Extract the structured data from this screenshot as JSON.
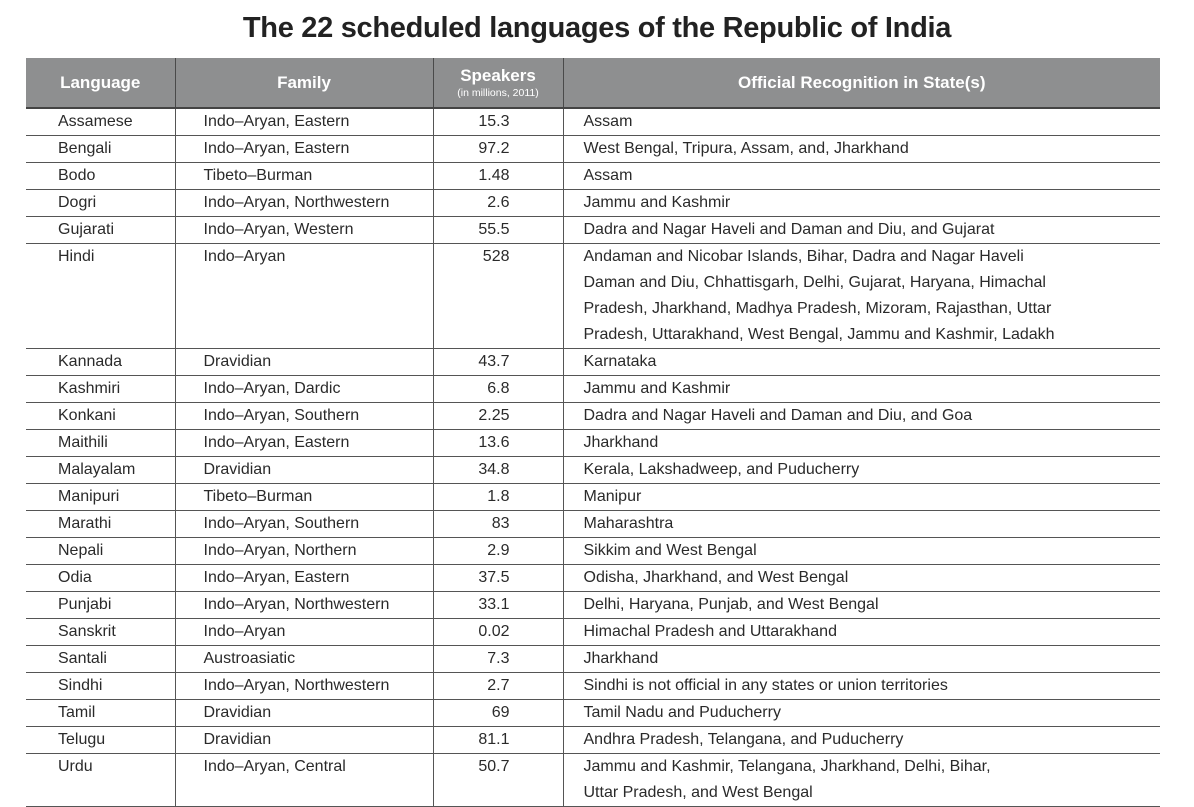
{
  "title": "The 22 scheduled languages of the Republic of India",
  "header": {
    "language": "Language",
    "family": "Family",
    "speakers": "Speakers",
    "speakers_sub": "(in millions, 2011)",
    "recognition": "Official Recognition in State(s)"
  },
  "rows": [
    {
      "language": "Assamese",
      "family": "Indo–Aryan, Eastern",
      "speakers": "15.3",
      "recognition": [
        "Assam"
      ]
    },
    {
      "language": "Bengali",
      "family": "Indo–Aryan, Eastern",
      "speakers": "97.2",
      "recognition": [
        "West Bengal, Tripura, Assam, and, Jharkhand"
      ]
    },
    {
      "language": "Bodo",
      "family": "Tibeto–Burman",
      "speakers": "1.48",
      "recognition": [
        "Assam"
      ]
    },
    {
      "language": "Dogri",
      "family": "Indo–Aryan, Northwestern",
      "speakers": "2.6",
      "recognition": [
        "Jammu and Kashmir"
      ]
    },
    {
      "language": "Gujarati",
      "family": "Indo–Aryan, Western",
      "speakers": "55.5",
      "recognition": [
        "Dadra and Nagar Haveli and Daman and Diu, and Gujarat"
      ]
    },
    {
      "language": "Hindi",
      "family": "Indo–Aryan",
      "speakers": "528",
      "recognition": [
        "Andaman and Nicobar Islands, Bihar, Dadra and Nagar Haveli",
        "Daman and Diu, Chhattisgarh, Delhi, Gujarat, Haryana, Himachal",
        "Pradesh, Jharkhand, Madhya Pradesh, Mizoram, Rajasthan, Uttar",
        "Pradesh, Uttarakhand, West Bengal, Jammu and Kashmir, Ladakh"
      ]
    },
    {
      "language": "Kannada",
      "family": "Dravidian",
      "speakers": "43.7",
      "recognition": [
        "Karnataka"
      ]
    },
    {
      "language": "Kashmiri",
      "family": "Indo–Aryan, Dardic",
      "speakers": "6.8",
      "recognition": [
        "Jammu and Kashmir"
      ]
    },
    {
      "language": "Konkani",
      "family": "Indo–Aryan, Southern",
      "speakers": "2.25",
      "recognition": [
        "Dadra and  Nagar Haveli and Daman and Diu, and Goa"
      ]
    },
    {
      "language": "Maithili",
      "family": "Indo–Aryan, Eastern",
      "speakers": "13.6",
      "recognition": [
        "Jharkhand"
      ]
    },
    {
      "language": "Malayalam",
      "family": "Dravidian",
      "speakers": "34.8",
      "recognition": [
        "Kerala, Lakshadweep, and Puducherry"
      ]
    },
    {
      "language": "Manipuri",
      "family": "Tibeto–Burman",
      "speakers": "1.8",
      "recognition": [
        "Manipur"
      ]
    },
    {
      "language": "Marathi",
      "family": "Indo–Aryan, Southern",
      "speakers": "83",
      "recognition": [
        "Maharashtra"
      ]
    },
    {
      "language": "Nepali",
      "family": "Indo–Aryan, Northern",
      "speakers": "2.9",
      "recognition": [
        "Sikkim and West Bengal"
      ]
    },
    {
      "language": "Odia",
      "family": "Indo–Aryan, Eastern",
      "speakers": "37.5",
      "recognition": [
        "Odisha, Jharkhand, and West Bengal"
      ]
    },
    {
      "language": "Punjabi",
      "family": "Indo–Aryan, Northwestern",
      "speakers": "33.1",
      "recognition": [
        "Delhi, Haryana, Punjab, and West Bengal"
      ]
    },
    {
      "language": "Sanskrit",
      "family": "Indo–Aryan",
      "speakers": "0.02",
      "recognition": [
        "Himachal Pradesh and Uttarakhand"
      ]
    },
    {
      "language": "Santali",
      "family": "Austroasiatic",
      "speakers": "7.3",
      "recognition": [
        "Jharkhand"
      ]
    },
    {
      "language": "Sindhi",
      "family": "Indo–Aryan, Northwestern",
      "speakers": "2.7",
      "recognition": [
        "Sindhi is not official in any states or union territories"
      ]
    },
    {
      "language": "Tamil",
      "family": "Dravidian",
      "speakers": "69",
      "recognition": [
        "Tamil Nadu and Puducherry"
      ]
    },
    {
      "language": "Telugu",
      "family": "Dravidian",
      "speakers": "81.1",
      "recognition": [
        "Andhra Pradesh, Telangana, and Puducherry"
      ]
    },
    {
      "language": "Urdu",
      "family": "Indo–Aryan, Central",
      "speakers": "50.7",
      "recognition": [
        "Jammu and Kashmir, Telangana, Jharkhand, Delhi, Bihar,",
        "Uttar Pradesh, and West Bengal"
      ]
    }
  ],
  "colors": {
    "header_bg": "#8e8f90",
    "header_text": "#ffffff",
    "rule": "#555555"
  }
}
